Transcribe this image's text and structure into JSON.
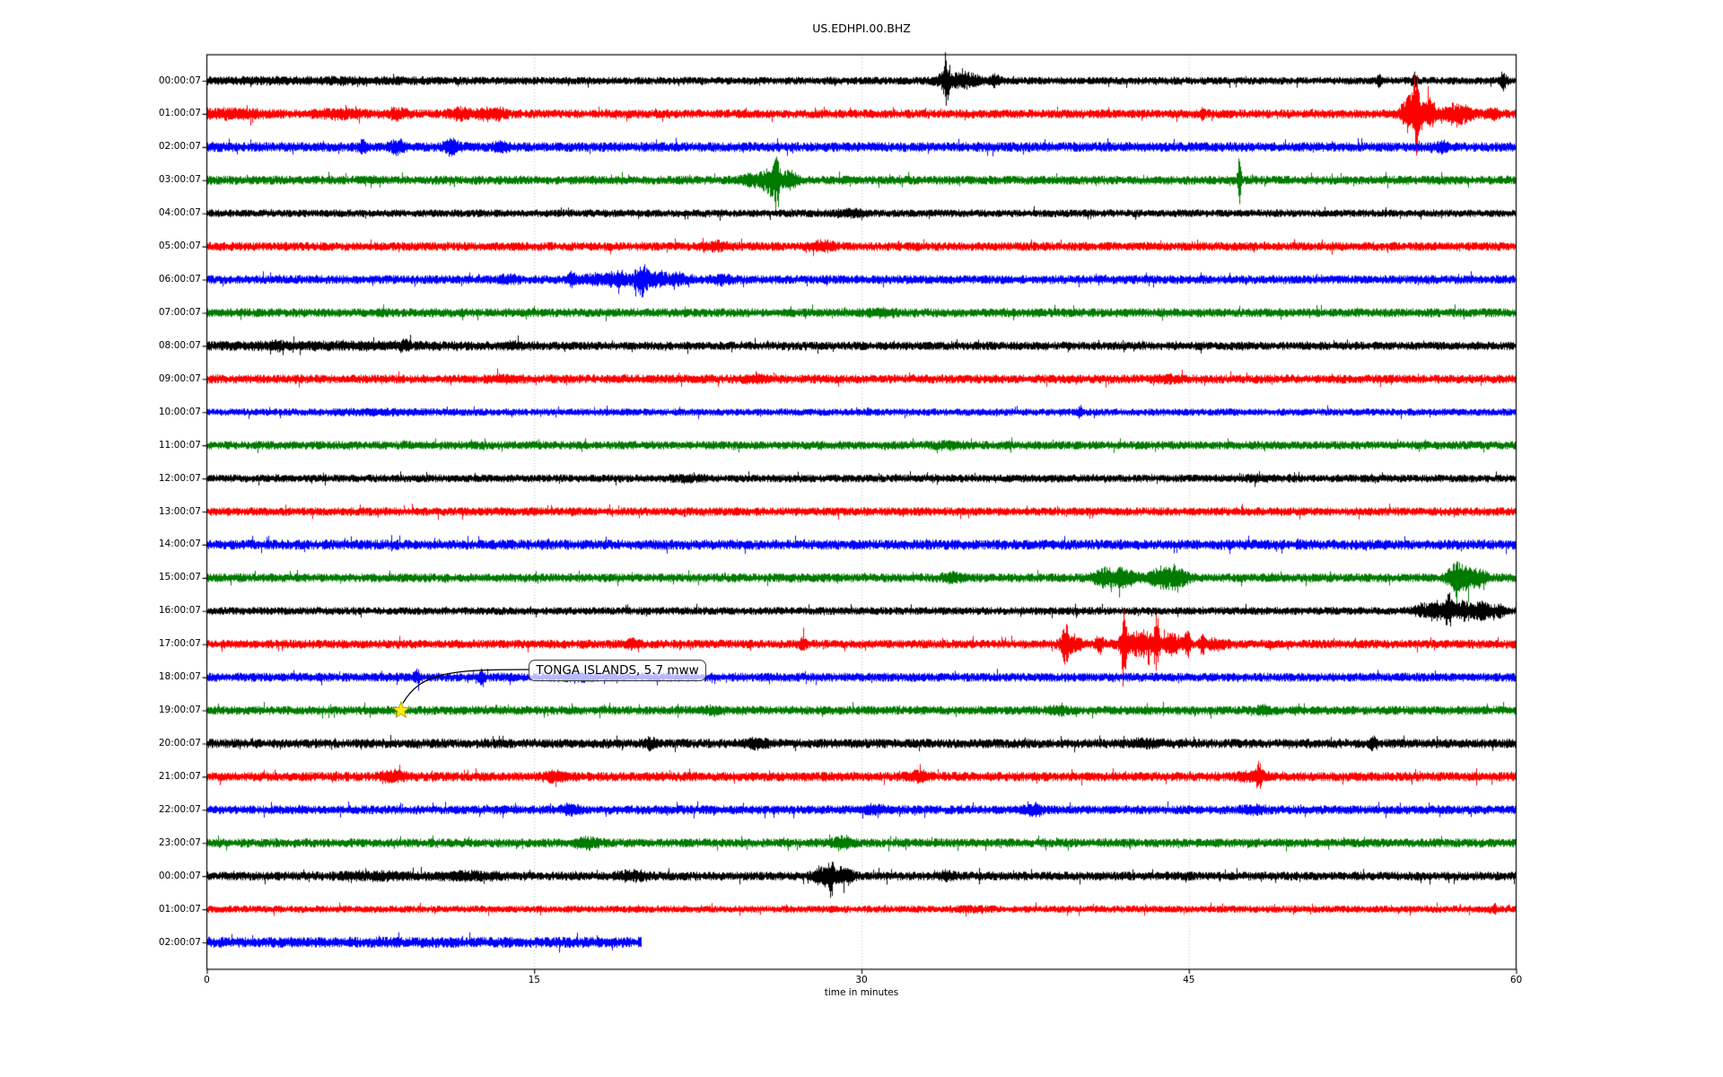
{
  "figure": {
    "title": "US.EDHPI.00.BHZ"
  },
  "x_axis": {
    "label": "time in minutes",
    "ticks": [
      "0",
      "15",
      "30",
      "45",
      "60"
    ],
    "tick_values": [
      0,
      15,
      30,
      45,
      60
    ],
    "range": [
      0,
      60
    ],
    "gridlines": [
      15,
      30,
      45
    ]
  },
  "annotation": {
    "text": "TONGA ISLANDS, 5.7 mww",
    "marker": "star-icon",
    "marker_color": "#ffee00",
    "marker_edge_color": "#a89a00",
    "row": "19:00:07",
    "time_min": 8.9
  },
  "palette": {
    "black": "#000000",
    "red": "#ff0000",
    "blue": "#0000ff",
    "green": "#007b00",
    "grid": "#b3b3b3",
    "spine": "#000000"
  },
  "chart_data": {
    "type": "line",
    "title": "US.EDHPI.00.BHZ",
    "xlabel": "time in minutes",
    "xlim": [
      0,
      60
    ],
    "grid_x": [
      15,
      30,
      45
    ],
    "description": "24-hour helicorder / dayplot of seismic channel US.EDHPI.00.BHZ; one hourly trace per row, colors cycling black-red-blue-green; amplitudes in pixels; events are gaussian bursts [time_min, extra_amplitude_px, sigma_min]",
    "rows": [
      {
        "label": "00:00:07",
        "color": "black",
        "amp": 3.6,
        "end": 60,
        "events": [
          [
            5,
            1.5,
            4
          ],
          [
            33.82,
            21,
            0.07
          ],
          [
            34.0,
            7,
            0.45
          ],
          [
            34.8,
            4.5,
            0.25
          ],
          [
            35.3,
            4,
            0.2
          ],
          [
            36.1,
            4.5,
            0.18
          ],
          [
            53.7,
            6,
            0.07
          ],
          [
            55.3,
            7,
            0.08
          ],
          [
            59.4,
            9,
            0.1
          ]
        ]
      },
      {
        "label": "01:00:07",
        "color": "red",
        "amp": 4.2,
        "end": 60,
        "events": [
          [
            1,
            3,
            1.2
          ],
          [
            6.1,
            3,
            0.8
          ],
          [
            8.7,
            4,
            0.35
          ],
          [
            11.6,
            5,
            0.35
          ],
          [
            12.7,
            4,
            0.25
          ],
          [
            13.4,
            4,
            0.25
          ],
          [
            45.6,
            5,
            0.07
          ],
          [
            55.1,
            18,
            0.25
          ],
          [
            55.4,
            34,
            0.09
          ],
          [
            55.9,
            14,
            0.3
          ],
          [
            57.3,
            9,
            0.45
          ],
          [
            58.9,
            4,
            0.25
          ]
        ]
      },
      {
        "label": "02:00:07",
        "color": "blue",
        "amp": 4.6,
        "end": 60,
        "events": [
          [
            7.1,
            4,
            0.15
          ],
          [
            8.7,
            5,
            0.25
          ],
          [
            11.2,
            6,
            0.25
          ],
          [
            13.5,
            5,
            0.18
          ],
          [
            56.6,
            3.5,
            0.2
          ]
        ]
      },
      {
        "label": "03:00:07",
        "color": "green",
        "amp": 4.2,
        "end": 60,
        "events": [
          [
            24.9,
            5,
            0.3
          ],
          [
            25.8,
            13,
            0.3
          ],
          [
            26.1,
            24,
            0.09
          ],
          [
            26.7,
            8,
            0.25
          ],
          [
            47.3,
            22,
            0.06
          ]
        ]
      },
      {
        "label": "04:00:07",
        "color": "black",
        "amp": 3.6,
        "end": 60,
        "events": [
          [
            29.5,
            2.5,
            0.5
          ]
        ]
      },
      {
        "label": "05:00:07",
        "color": "red",
        "amp": 4.2,
        "end": 60,
        "events": [
          [
            23.3,
            3,
            0.4
          ],
          [
            28.2,
            3.5,
            0.4
          ]
        ]
      },
      {
        "label": "06:00:07",
        "color": "blue",
        "amp": 4.2,
        "end": 60,
        "events": [
          [
            13.8,
            3,
            0.3
          ],
          [
            16.7,
            7,
            0.12
          ],
          [
            17.6,
            4,
            0.3
          ],
          [
            18.8,
            7,
            0.4
          ],
          [
            19.9,
            15,
            0.22
          ],
          [
            20.7,
            6,
            0.3
          ],
          [
            21.6,
            4,
            0.3
          ],
          [
            23.6,
            3.5,
            0.3
          ]
        ]
      },
      {
        "label": "07:00:07",
        "color": "green",
        "amp": 4.2,
        "end": 60,
        "events": [
          [
            30.8,
            2.5,
            0.4
          ]
        ]
      },
      {
        "label": "08:00:07",
        "color": "black",
        "amp": 4.0,
        "end": 60,
        "events": [
          [
            5,
            1.5,
            5
          ],
          [
            3.2,
            2.5,
            0.2
          ],
          [
            9,
            2.5,
            0.2
          ],
          [
            14,
            2,
            0.3
          ]
        ]
      },
      {
        "label": "09:00:07",
        "color": "red",
        "amp": 4.2,
        "end": 60,
        "events": [
          [
            13.5,
            2,
            0.5
          ],
          [
            25,
            2,
            0.4
          ],
          [
            44,
            2,
            0.4
          ]
        ]
      },
      {
        "label": "10:00:07",
        "color": "blue",
        "amp": 3.4,
        "end": 60,
        "events": [
          [
            8,
            1,
            2
          ],
          [
            40,
            3.5,
            0.12
          ]
        ]
      },
      {
        "label": "11:00:07",
        "color": "green",
        "amp": 4.0,
        "end": 60,
        "events": [
          [
            34,
            2,
            0.5
          ]
        ]
      },
      {
        "label": "12:00:07",
        "color": "black",
        "amp": 3.7,
        "end": 60,
        "events": [
          [
            22,
            1.5,
            0.5
          ],
          [
            48,
            1.5,
            0.5
          ]
        ]
      },
      {
        "label": "13:00:07",
        "color": "red",
        "amp": 4.0,
        "end": 60,
        "events": []
      },
      {
        "label": "14:00:07",
        "color": "blue",
        "amp": 4.8,
        "end": 60,
        "events": []
      },
      {
        "label": "15:00:07",
        "color": "green",
        "amp": 4.2,
        "end": 60,
        "events": [
          [
            34.2,
            4,
            0.3
          ],
          [
            41.3,
            8,
            0.5
          ],
          [
            42.1,
            6,
            0.3
          ],
          [
            43.8,
            9,
            0.5
          ],
          [
            44.5,
            7,
            0.3
          ],
          [
            57.2,
            13,
            0.25
          ],
          [
            57.7,
            8,
            0.35
          ],
          [
            58.3,
            5,
            0.3
          ]
        ]
      },
      {
        "label": "16:00:07",
        "color": "black",
        "amp": 3.7,
        "end": 60,
        "events": [
          [
            55.6,
            6,
            0.2
          ],
          [
            56.3,
            9,
            0.3
          ],
          [
            56.9,
            15,
            0.12
          ],
          [
            57.6,
            8,
            0.35
          ],
          [
            58.4,
            8,
            0.3
          ],
          [
            59.2,
            5,
            0.2
          ]
        ]
      },
      {
        "label": "17:00:07",
        "color": "red",
        "amp": 4.2,
        "end": 60,
        "events": [
          [
            19.5,
            4,
            0.2
          ],
          [
            27.3,
            5,
            0.12
          ],
          [
            39.3,
            18,
            0.1
          ],
          [
            39.6,
            7,
            0.35
          ],
          [
            40.9,
            9,
            0.12
          ],
          [
            42.0,
            26,
            0.08
          ],
          [
            42.3,
            9,
            0.35
          ],
          [
            43.0,
            10,
            0.3
          ],
          [
            43.5,
            32,
            0.08
          ],
          [
            44.2,
            9,
            0.35
          ],
          [
            44.9,
            15,
            0.1
          ],
          [
            45.6,
            11,
            0.08
          ],
          [
            46.2,
            4,
            0.3
          ]
        ]
      },
      {
        "label": "18:00:07",
        "color": "blue",
        "amp": 4.2,
        "end": 60,
        "events": [
          [
            9.6,
            5,
            0.12
          ],
          [
            12.6,
            6,
            0.1
          ],
          [
            17,
            2.5,
            0.4
          ]
        ]
      },
      {
        "label": "19:00:07",
        "color": "green",
        "amp": 4.2,
        "end": 60,
        "events": [
          [
            23.2,
            3,
            0.3
          ],
          [
            39,
            3.5,
            0.25
          ],
          [
            48.4,
            4,
            0.18
          ]
        ]
      },
      {
        "label": "20:00:07",
        "color": "black",
        "amp": 4.4,
        "end": 60,
        "events": [
          [
            20.3,
            4,
            0.18
          ],
          [
            25.2,
            4,
            0.3
          ],
          [
            43,
            2.5,
            0.5
          ],
          [
            53.4,
            5,
            0.12
          ]
        ]
      },
      {
        "label": "21:00:07",
        "color": "red",
        "amp": 4.4,
        "end": 60,
        "events": [
          [
            8.5,
            4,
            0.4
          ],
          [
            16,
            3.5,
            0.4
          ],
          [
            32.6,
            4,
            0.3
          ],
          [
            47.9,
            3,
            0.5
          ],
          [
            48.2,
            10,
            0.1
          ]
        ]
      },
      {
        "label": "22:00:07",
        "color": "blue",
        "amp": 4.2,
        "end": 60,
        "events": [
          [
            16.7,
            4,
            0.3
          ],
          [
            30.5,
            3,
            0.4
          ],
          [
            37.9,
            4,
            0.3
          ],
          [
            48,
            2.5,
            0.4
          ]
        ]
      },
      {
        "label": "23:00:07",
        "color": "green",
        "amp": 4.2,
        "end": 60,
        "events": [
          [
            17.4,
            4,
            0.4
          ],
          [
            29.1,
            5,
            0.3
          ]
        ]
      },
      {
        "label": "00:00:07",
        "color": "black",
        "amp": 4.2,
        "end": 60,
        "events": [
          [
            7.5,
            2.5,
            1
          ],
          [
            12,
            2.5,
            1
          ],
          [
            19.5,
            3.5,
            0.5
          ],
          [
            28.2,
            9,
            0.3
          ],
          [
            28.6,
            15,
            0.1
          ],
          [
            29.2,
            7,
            0.3
          ],
          [
            33.9,
            3.5,
            0.2
          ]
        ]
      },
      {
        "label": "01:00:07",
        "color": "red",
        "amp": 3.4,
        "end": 60,
        "events": [
          [
            35,
            1.5,
            0.5
          ],
          [
            59,
            4,
            0.08
          ]
        ]
      },
      {
        "label": "02:00:07",
        "color": "blue",
        "amp": 5.2,
        "end": 19.9,
        "events": []
      }
    ]
  }
}
